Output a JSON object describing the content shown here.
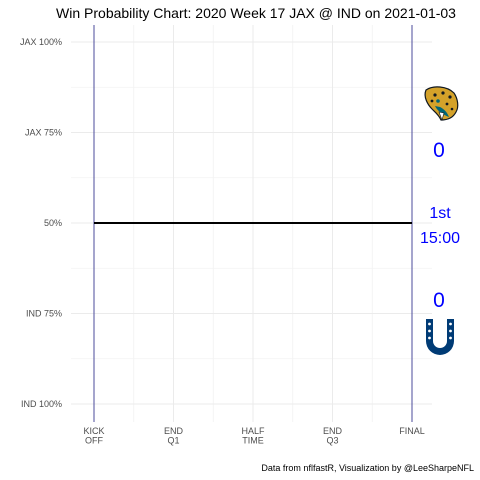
{
  "chart_data": {
    "type": "line",
    "title": "Win Probability Chart: 2020 Week 17 JAX @ IND on 2021-01-03",
    "caption": "Data from nflfastR, Visualization by @LeeSharpeNFL",
    "xlabel": "",
    "ylabel": "",
    "x_ticks": [
      {
        "value": 0,
        "label": [
          "KICK",
          "OFF"
        ]
      },
      {
        "value": 0.25,
        "label": [
          "END",
          "Q1"
        ]
      },
      {
        "value": 0.5,
        "label": [
          "HALF",
          "TIME"
        ]
      },
      {
        "value": 0.75,
        "label": [
          "END",
          "Q3"
        ]
      },
      {
        "value": 1,
        "label": [
          "FINAL"
        ]
      }
    ],
    "y_ticks": [
      {
        "value": 1.0,
        "label": "JAX 100%"
      },
      {
        "value": 0.75,
        "label": "JAX 75%"
      },
      {
        "value": 0.5,
        "label": "50%"
      },
      {
        "value": 0.25,
        "label": "IND 75%"
      },
      {
        "value": 0.0,
        "label": "IND 100%"
      }
    ],
    "xlim": [
      0,
      1
    ],
    "ylim": [
      0,
      1
    ],
    "vlines": [
      0,
      1
    ],
    "series": [
      {
        "x": [
          0,
          1
        ],
        "values": [
          0.5,
          0.5
        ],
        "color": "#000000"
      }
    ],
    "away_team": {
      "score": "0",
      "logo": "jaguar-head-icon"
    },
    "home_team": {
      "score": "0",
      "logo": "horseshoe-icon"
    },
    "game_state": {
      "quarter": "1st",
      "clock": "15:00"
    },
    "colors": {
      "vline": "#4b4b9b",
      "annotation": "#0000ff",
      "gold": "#d4a22a",
      "teal": "#006778",
      "colts_blue": "#003b75"
    },
    "grid": true
  }
}
